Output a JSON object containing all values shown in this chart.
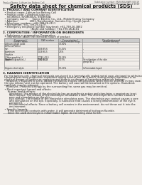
{
  "bg_color": "#f2eeea",
  "header_left": "Product Name: Lithium Ion Battery Cell",
  "header_right_line1": "Substance number: M2S56D20ATP-00019",
  "header_right_line2": "Established / Revision: Dec.1.2010",
  "title": "Safety data sheet for chemical products (SDS)",
  "section1_title": "1. PRODUCT AND COMPANY IDENTIFICATION",
  "section1_lines": [
    "  • Product name: Lithium Ion Battery Cell",
    "  • Product code: Cylindrical-type cell",
    "     SV18650U, SV18650U2, SV18650A",
    "  • Company name:      Sanyo Electric Co., Ltd., Mobile Energy Company",
    "  • Address:               2001, Kamikosakai, Sumoto-City, Hyogo, Japan",
    "  • Telephone number:   +81-799-26-4111",
    "  • Fax number: +81-799-26-4129",
    "  • Emergency telephone number (daytime): +81-799-26-3862",
    "                                   (Night and holiday): +81-799-26-4101"
  ],
  "section2_title": "2. COMPOSITION / INFORMATION ON INGREDIENTS",
  "section2_intro": "  • Substance or preparation: Preparation",
  "section2_sub": "  • Information about the chemical nature of product:",
  "table_col_headers_row1": [
    "Component /",
    "CAS number",
    "Concentration /",
    "Classification and"
  ],
  "table_col_headers_row2": [
    "Generic name",
    "",
    "Concentration range",
    "hazard labeling"
  ],
  "table_rows": [
    [
      "Lithium cobalt oxide",
      "-",
      "30-50%",
      ""
    ],
    [
      "(LiMn-Co)PbO(x)",
      "",
      "",
      ""
    ],
    [
      "Iron",
      "7439-89-6",
      "15-25%",
      "-"
    ],
    [
      "Aluminum",
      "7429-90-5",
      "2-5%",
      "-"
    ],
    [
      "Graphite",
      "",
      "",
      ""
    ],
    [
      "(Flake graphite-L)",
      "77782-42-5",
      "10-25%",
      "-"
    ],
    [
      "(Artificial graphite-L)",
      "7782-44-2",
      "",
      ""
    ],
    [
      "Copper",
      "7440-50-8",
      "5-15%",
      "Sensitization of the skin\ngroup No.2"
    ],
    [
      "Organic electrolyte",
      "-",
      "10-20%",
      "Inflammable liquid"
    ]
  ],
  "section3_title": "3. HAZARDS IDENTIFICATION",
  "section3_lines": [
    "  For the battery cell, chemical materials are stored in a hermetically sealed metal case, designed to withstand",
    "  temperatures from production conditions during normal use. As a result, during normal use, there is no",
    "  physical danger of ignition or explosion and there is no danger of hazardous materials leakage.",
    "    However, if exposed to a fire, added mechanical shocks, decomposed, when electric shorted, in may case,",
    "  the gas release vent can be operated. The battery cell case will be breached at fire options. Hazardous",
    "  materials may be released.",
    "    Moreover, if heated strongly by the surrounding fire, some gas may be emitted.",
    "",
    "  • Most important hazard and effects:",
    "      Human health effects:",
    "        Inhalation: The release of the electrolyte has an anesthesia action and stimulates a respiratory tract.",
    "        Skin contact: The release of the electrolyte stimulates a skin. The electrolyte skin contact causes a",
    "        sore and stimulation on the skin.",
    "        Eye contact: The release of the electrolyte stimulates eyes. The electrolyte eye contact causes a sore",
    "        and stimulation on the eye. Especially, a substance that causes a strong inflammation of the eye is",
    "        contained.",
    "        Environmental effects: Since a battery cell remains in the environment, do not throw out it into the",
    "        environment.",
    "",
    "  • Specific hazards:",
    "      If the electrolyte contacts with water, it will generate detrimental hydrogen fluoride.",
    "      Since the used electrolyte is inflammable liquid, do not bring close to fire."
  ],
  "text_color": "#1a1a1a",
  "line_color": "#888888",
  "title_font_size": 4.8,
  "body_font_size": 2.5,
  "header_font_size": 2.2,
  "section_font_size": 2.9,
  "table_font_size": 2.1
}
